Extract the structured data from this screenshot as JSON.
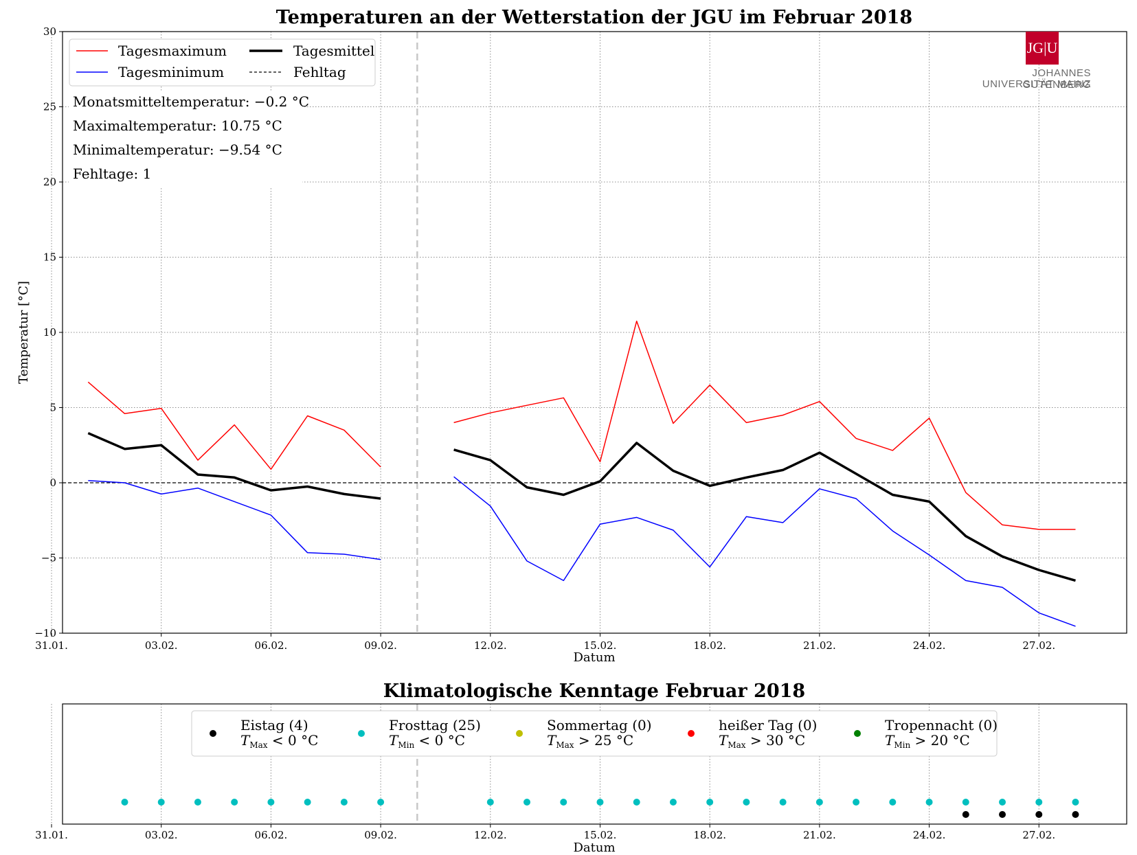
{
  "logo": {
    "mark": "JG|U",
    "line1": "JOHANNES GUTENBERG",
    "line2": "UNIVERSITÄT MAINZ"
  },
  "info": {
    "mean": "Monatsmitteltemperatur:  −0.2 °C",
    "max": "Maximaltemperatur:  10.75 °C",
    "min": "Minimaltemperatur:  −9.54 °C",
    "missing": "Fehltage:  1"
  },
  "chart_data": [
    {
      "type": "line",
      "title": "Temperaturen an der Wetterstation der JGU im Februar 2018",
      "xlabel": "Datum",
      "ylabel": "Temperatur [°C]",
      "xlim": [
        0.3,
        29.4
      ],
      "ylim": [
        -10,
        30
      ],
      "yticks": [
        -10,
        -5,
        0,
        5,
        10,
        15,
        20,
        25,
        30
      ],
      "ytick_labels": [
        "−10",
        "−5",
        "0",
        "5",
        "10",
        "15",
        "20",
        "25",
        "30"
      ],
      "xticks": [
        0,
        3,
        6,
        9,
        12,
        15,
        18,
        21,
        24,
        27
      ],
      "xtick_labels": [
        "31.01.",
        "03.02.",
        "06.02.",
        "09.02.",
        "12.02.",
        "15.02.",
        "18.02.",
        "21.02.",
        "24.02.",
        "27.02."
      ],
      "grid": true,
      "missing_day_x": 10,
      "zero_line": 0,
      "x": [
        1,
        2,
        3,
        4,
        5,
        6,
        7,
        8,
        9,
        11,
        12,
        13,
        14,
        15,
        16,
        17,
        18,
        19,
        20,
        21,
        22,
        23,
        24,
        25,
        26,
        27,
        28
      ],
      "series": [
        {
          "name": "Tagesmaximum",
          "color": "#ff0000",
          "width": 1.5,
          "values": [
            6.7,
            4.6,
            4.95,
            1.5,
            3.85,
            0.9,
            4.45,
            3.5,
            1.05,
            4.0,
            4.65,
            5.15,
            5.65,
            1.4,
            10.75,
            3.95,
            6.5,
            4.0,
            4.5,
            5.4,
            2.95,
            2.15,
            4.3,
            -0.65,
            -2.8,
            -3.1,
            -3.1
          ]
        },
        {
          "name": "Tagesminimum",
          "color": "#0000ff",
          "width": 1.5,
          "values": [
            0.15,
            0.0,
            -0.75,
            -0.35,
            -1.25,
            -2.15,
            -4.65,
            -4.75,
            -5.1,
            0.4,
            -1.55,
            -5.2,
            -6.5,
            -2.75,
            -2.3,
            -3.15,
            -5.6,
            -2.25,
            -2.65,
            -0.4,
            -1.05,
            -3.2,
            -4.8,
            -6.5,
            -6.95,
            -8.65,
            -9.54
          ]
        },
        {
          "name": "Tagesmittel",
          "color": "#000000",
          "width": 3.5,
          "values": [
            3.3,
            2.25,
            2.5,
            0.55,
            0.35,
            -0.5,
            -0.25,
            -0.75,
            -1.05,
            2.2,
            1.5,
            -0.3,
            -0.8,
            0.1,
            2.65,
            0.8,
            -0.2,
            0.35,
            0.85,
            2.0,
            0.6,
            -0.8,
            -1.25,
            -3.55,
            -4.9,
            -5.8,
            -6.5
          ]
        }
      ],
      "legend": [
        {
          "label": "Tagesmaximum",
          "color": "#ff0000",
          "style": "solid-thin"
        },
        {
          "label": "Tagesminimum",
          "color": "#0000ff",
          "style": "solid-thin"
        },
        {
          "label": "Tagesmittel",
          "color": "#000000",
          "style": "solid-thick"
        },
        {
          "label": "Fehltag",
          "color": "#000000",
          "style": "dashed"
        }
      ],
      "legend_placement": "top-left"
    },
    {
      "type": "scatter",
      "title": "Klimatologische Kenntage Februar 2018",
      "xlabel": "Datum",
      "xlim": [
        0.3,
        29.4
      ],
      "xticks": [
        0,
        3,
        6,
        9,
        12,
        15,
        18,
        21,
        24,
        27
      ],
      "xtick_labels": [
        "31.01.",
        "03.02.",
        "06.02.",
        "09.02.",
        "12.02.",
        "15.02.",
        "18.02.",
        "21.02.",
        "24.02.",
        "27.02."
      ],
      "grid": true,
      "missing_day_x": 10,
      "series": [
        {
          "name": "Eistag (4)",
          "condition_text": "< 0 °C",
          "var": "T",
          "sub": "Max",
          "color": "#000000",
          "row": 0,
          "x": [
            25,
            26,
            27,
            28
          ]
        },
        {
          "name": "Frosttag (25)",
          "condition_text": "< 0 °C",
          "var": "T",
          "sub": "Min",
          "color": "#00bfbf",
          "row": 1,
          "x": [
            2,
            3,
            4,
            5,
            6,
            7,
            8,
            9,
            12,
            13,
            14,
            15,
            16,
            17,
            18,
            19,
            20,
            21,
            22,
            23,
            24,
            25,
            26,
            27,
            28
          ]
        },
        {
          "name": "Sommertag (0)",
          "condition_text": "> 25 °C",
          "var": "T",
          "sub": "Max",
          "color": "#bfbf00",
          "row": 2,
          "x": []
        },
        {
          "name": "heißer Tag (0)",
          "condition_text": "> 30 °C",
          "var": "T",
          "sub": "Max",
          "color": "#ff0000",
          "row": 3,
          "x": []
        },
        {
          "name": "Tropennacht (0)",
          "condition_text": "> 20 °C",
          "var": "T",
          "sub": "Min",
          "color": "#008000",
          "row": 4,
          "x": []
        }
      ],
      "legend_placement": "top-center"
    }
  ]
}
